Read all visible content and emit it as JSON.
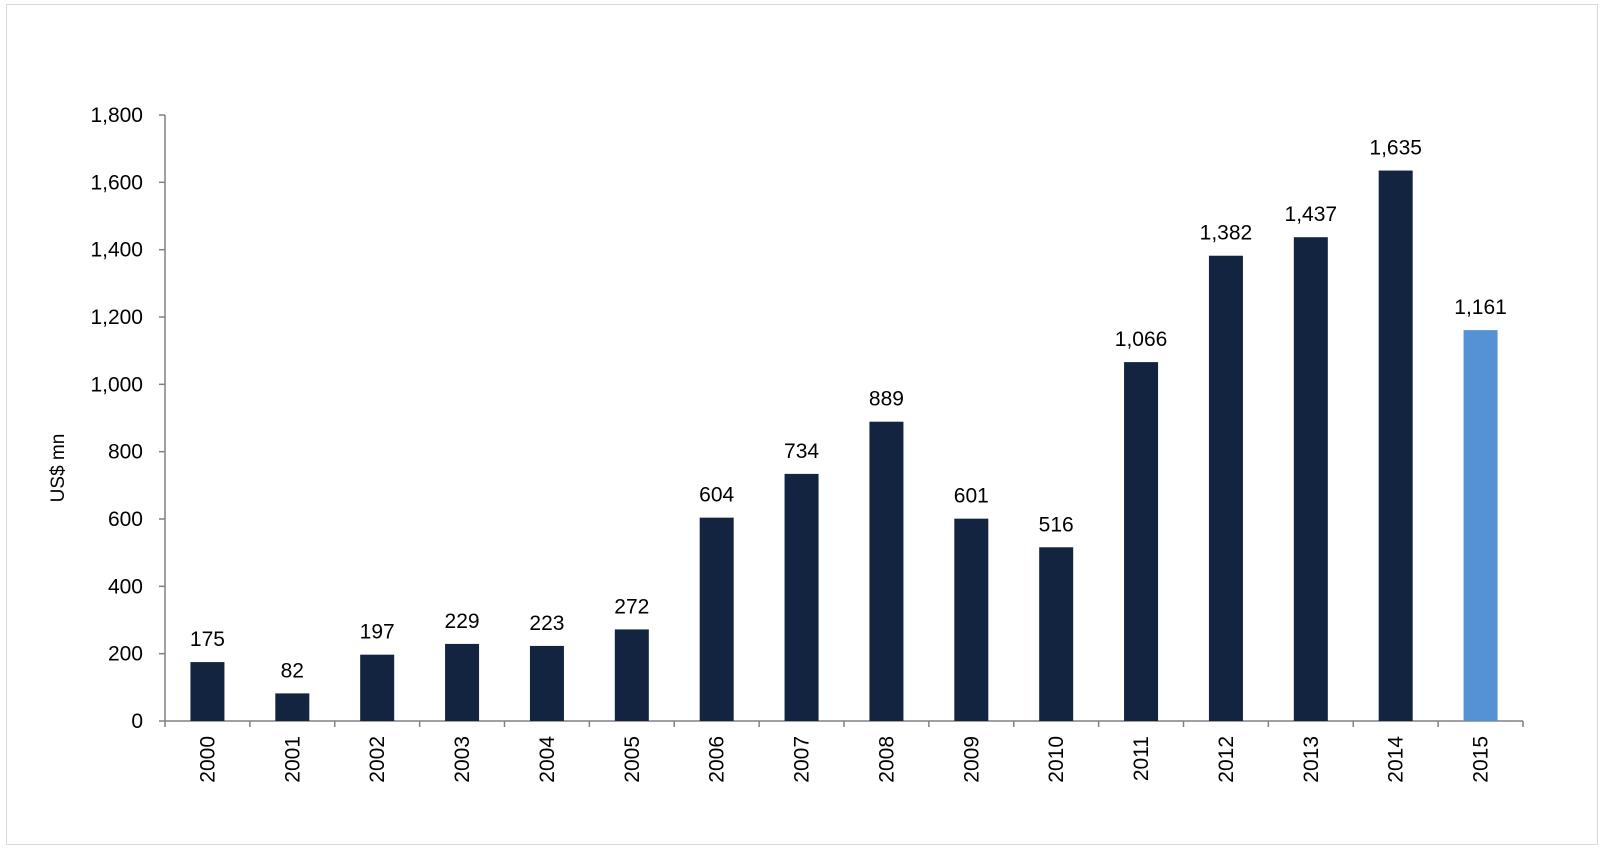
{
  "chart_data": {
    "type": "bar",
    "title": "",
    "xlabel": "",
    "ylabel": "US$ mn",
    "ylim": [
      0,
      1800
    ],
    "yticks": [
      0,
      200,
      400,
      600,
      800,
      1000,
      1200,
      1400,
      1600,
      1800
    ],
    "ytick_labels": [
      "0",
      "200",
      "400",
      "600",
      "800",
      "1,000",
      "1,200",
      "1,400",
      "1,600",
      "1,800"
    ],
    "categories": [
      "2000",
      "2001",
      "2002",
      "2003",
      "2004",
      "2005",
      "2006",
      "2007",
      "2008",
      "2009",
      "2010",
      "2011",
      "2012",
      "2013",
      "2014",
      "2015"
    ],
    "values": [
      175,
      82,
      197,
      229,
      223,
      272,
      604,
      734,
      889,
      601,
      516,
      1066,
      1382,
      1437,
      1635,
      1161
    ],
    "value_labels": [
      "175",
      "82",
      "197",
      "229",
      "223",
      "272",
      "604",
      "734",
      "889",
      "601",
      "516",
      "1,066",
      "1,382",
      "1,437",
      "1,635",
      "1,161"
    ],
    "colors": {
      "default_bar": "#12243F",
      "highlight_bar": "#5591D5",
      "axis": "#808080"
    },
    "highlight_index": 15,
    "grid": false,
    "legend": "none"
  }
}
